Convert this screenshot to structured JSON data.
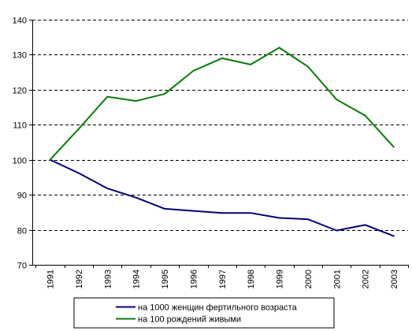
{
  "chart_data": {
    "type": "line",
    "categories": [
      "1991",
      "1992",
      "1993",
      "1994",
      "1995",
      "1996",
      "1997",
      "1998",
      "1999",
      "2000",
      "2001",
      "2002",
      "2003"
    ],
    "series": [
      {
        "name": "на 1000 женщин фертильного возраста",
        "color": "#000080",
        "values": [
          100,
          96.2,
          91.8,
          89.2,
          86.0,
          85.4,
          84.8,
          84.8,
          83.4,
          83.0,
          79.8,
          81.4,
          78.2
        ]
      },
      {
        "name": "на 100 рождений живыми",
        "color": "#008000",
        "values": [
          100,
          108.8,
          118.0,
          116.8,
          118.8,
          125.4,
          129.0,
          127.2,
          132.0,
          126.6,
          117.2,
          112.6,
          103.6
        ]
      }
    ],
    "y_ticks": [
      70,
      80,
      90,
      100,
      110,
      120,
      130,
      140
    ],
    "ylim": [
      70,
      140
    ],
    "grid": "horizontal dashed",
    "legend_position": "bottom"
  }
}
